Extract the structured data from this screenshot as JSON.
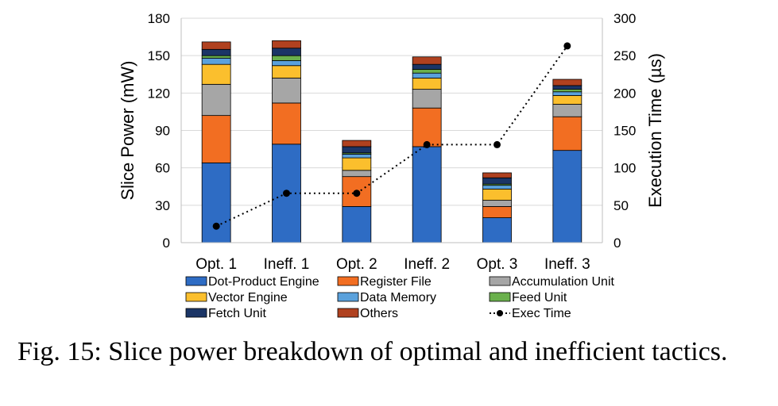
{
  "chart_data": {
    "type": "bar",
    "stacked": true,
    "categories": [
      "Opt. 1",
      "Ineff. 1",
      "Opt. 2",
      "Ineff. 2",
      "Opt. 3",
      "Ineff. 3"
    ],
    "ylabel": "Slice Power (mW)",
    "ylim": [
      0,
      180
    ],
    "yticks": [
      0,
      30,
      60,
      90,
      120,
      150,
      180
    ],
    "y2label": "Execution Time (µs)",
    "y2lim": [
      0,
      300
    ],
    "y2ticks": [
      0,
      50,
      100,
      150,
      200,
      250,
      300
    ],
    "grid": true,
    "legend_placement": "bottom",
    "series": [
      {
        "name": "Dot-Product Engine",
        "color": "#2e6cc4",
        "values": [
          64,
          79,
          29,
          77,
          20,
          74
        ]
      },
      {
        "name": "Register File",
        "color": "#f26e22",
        "values": [
          38,
          33,
          24,
          31,
          9,
          27
        ]
      },
      {
        "name": "Accumulation Unit",
        "color": "#a6a6a6",
        "values": [
          25,
          20,
          5,
          15,
          5,
          10
        ]
      },
      {
        "name": "Vector Engine",
        "color": "#fbbf2d",
        "values": [
          16,
          10,
          10,
          9,
          9,
          7
        ]
      },
      {
        "name": "Data Memory",
        "color": "#5aa1dc",
        "values": [
          5,
          4,
          3,
          4,
          3,
          3
        ]
      },
      {
        "name": "Feed Unit",
        "color": "#6ab04c",
        "values": [
          2,
          4,
          1,
          3,
          1,
          2
        ]
      },
      {
        "name": "Fetch Unit",
        "color": "#1b3566",
        "values": [
          5,
          6,
          5,
          4,
          5,
          3
        ]
      },
      {
        "name": "Others",
        "color": "#b0411f",
        "values": [
          6,
          6,
          5,
          6,
          4,
          5
        ]
      }
    ],
    "line_series": {
      "name": "Exec Time",
      "axis": "right",
      "color": "#000000",
      "style": "dotted",
      "marker": "circle",
      "values": [
        22,
        66,
        66,
        131,
        131,
        263
      ]
    }
  },
  "caption": "Fig. 15: Slice power breakdown of optimal and inefficient tactics."
}
